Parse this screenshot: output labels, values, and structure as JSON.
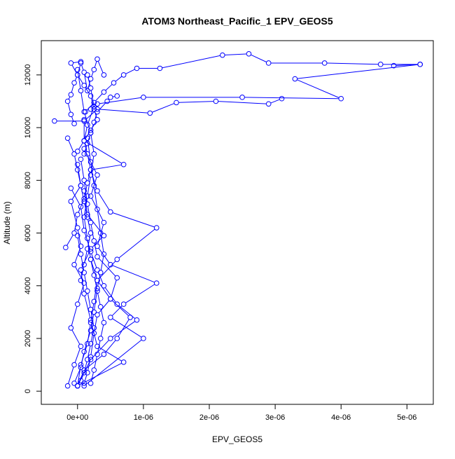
{
  "chart_data": {
    "type": "scatter",
    "title": "ATOM3 Northeast_Pacific_1 EPV_GEOS5",
    "xlabel": "EPV_GEOS5",
    "ylabel": "Altitude (m)",
    "xlim": [
      -5.5e-07,
      5.4e-06
    ],
    "ylim": [
      -500,
      13300
    ],
    "x_ticks": [
      0,
      1e-06,
      2e-06,
      3e-06,
      4e-06,
      5e-06
    ],
    "x_tick_labels": [
      "0e+00",
      "1e-06",
      "2e-06",
      "3e-06",
      "4e-06",
      "5e-06"
    ],
    "y_ticks": [
      0,
      2000,
      4000,
      6000,
      8000,
      10000,
      12000
    ],
    "y_tick_labels": [
      "0",
      "2000",
      "4000",
      "6000",
      "8000",
      "10000",
      "12000"
    ],
    "grid": false,
    "colors": {
      "series": "#0000ff",
      "axes": "#000000",
      "background": "#ffffff"
    },
    "series": [
      {
        "x": [
          1.2e-07,
          2.5e-07,
          4e-07,
          5.5e-07,
          7e-07,
          9e-07,
          1.25e-06,
          2.2e-06,
          2.6e-06,
          2.9e-06,
          3.75e-06,
          4.6e-06,
          5.2e-06
        ],
        "y": [
          10600,
          10950,
          11350,
          11700,
          12000,
          12250,
          12250,
          12750,
          12800,
          12450,
          12450,
          12400,
          12400
        ]
      },
      {
        "x": [
          2e-07,
          3e-07,
          1e-06,
          2.5e-06,
          4e-06,
          3.3e-06,
          5.2e-06,
          4.8e-06
        ],
        "y": [
          10700,
          10900,
          11150,
          11150,
          11100,
          11850,
          12400,
          12350
        ]
      },
      {
        "x": [
          -3.5e-07,
          1e-07,
          3e-07,
          1.1e-06,
          1.5e-06,
          2.1e-06,
          2.9e-06,
          3.1e-06
        ],
        "y": [
          10250,
          10250,
          10700,
          10550,
          10950,
          11000,
          10900,
          11100
        ]
      },
      {
        "x": [
          0,
          5e-08,
          1.5e-07,
          2e-07,
          2.5e-07,
          3e-07,
          2e-07,
          1.5e-07,
          1e-07,
          1.5e-07,
          2e-07,
          2.5e-07,
          2e-07,
          1e-07,
          5e-08,
          0
        ],
        "y": [
          200,
          1000,
          1800,
          2600,
          3400,
          4200,
          5000,
          5800,
          6600,
          7400,
          8200,
          9000,
          9800,
          10600,
          11400,
          12200
        ]
      },
      {
        "x": [
          0,
          1e-07,
          4e-07,
          6e-07,
          8e-07,
          5e-07,
          3e-07,
          6e-07,
          1.2e-06,
          5e-07,
          3e-07,
          2e-07,
          7e-07,
          1e-07,
          1e-07
        ],
        "y": [
          200,
          800,
          1400,
          2000,
          2800,
          3500,
          4200,
          5000,
          6200,
          6800,
          7600,
          8400,
          8600,
          9500,
          10300
        ]
      },
      {
        "x": [
          1e-07,
          1e-06,
          5e-07,
          7e-07,
          1.2e-06,
          5e-07,
          3e-07,
          4e-07,
          2e-07,
          3e-07,
          1e-07
        ],
        "y": [
          200,
          2000,
          2800,
          3300,
          4100,
          4800,
          5500,
          6400,
          7400,
          8200,
          9200
        ]
      },
      {
        "x": [
          -1.5e-07,
          -5e-08,
          5e-08,
          -1e-07,
          0,
          1e-07,
          -5e-08,
          5e-08,
          0,
          -1e-07,
          5e-08,
          0
        ],
        "y": [
          200,
          1000,
          1700,
          2400,
          3300,
          4100,
          4800,
          5500,
          6200,
          7200,
          7800,
          8600
        ]
      },
      {
        "x": [
          -1.8e-07,
          -5e-08,
          0,
          1e-07,
          1.5e-07,
          2e-07,
          1.5e-07,
          1e-07,
          1.5e-07,
          2.5e-07,
          2e-07,
          1.5e-07
        ],
        "y": [
          5450,
          6000,
          6700,
          7300,
          7900,
          8400,
          9000,
          9500,
          10100,
          10800,
          11500,
          12000
        ]
      },
      {
        "x": [
          0,
          2e-07,
          5e-07,
          9e-07,
          6e-07,
          4e-07,
          3e-07,
          2e-07,
          1e-07,
          5e-08,
          -1e-07
        ],
        "y": [
          200,
          1200,
          2000,
          2700,
          3300,
          4000,
          4600,
          5300,
          6100,
          7000,
          7700
        ]
      },
      {
        "x": [
          0,
          7e-07,
          3e-07,
          2e-07,
          1e-07,
          5e-08,
          2e-07,
          4e-07,
          1.5e-07,
          1e-07
        ],
        "y": [
          200,
          1100,
          1700,
          2700,
          3700,
          4600,
          5400,
          5900,
          6700,
          7600
        ]
      },
      {
        "x": [
          -5e-08,
          5e-08,
          1e-07,
          2e-07,
          2.5e-07,
          3e-07,
          3.5e-07,
          4e-07,
          3.5e-07,
          3e-07,
          2.5e-07,
          2e-07,
          1.5e-07
        ],
        "y": [
          300,
          900,
          1500,
          2300,
          3000,
          3900,
          4500,
          5200,
          6000,
          6900,
          7800,
          8700,
          9600
        ]
      },
      {
        "x": [
          1e-07,
          1.5e-07,
          2e-07,
          2.5e-07,
          3e-07,
          5e-07,
          6e-07,
          3e-07,
          2.5e-07,
          2e-07,
          1.5e-07,
          1e-07,
          5e-08
        ],
        "y": [
          300,
          700,
          1300,
          2200,
          2900,
          3500,
          4300,
          5100,
          5700,
          6400,
          7100,
          8000,
          8800
        ]
      },
      {
        "x": [
          -5e-08,
          -1e-07,
          -1.5e-07,
          -1e-07,
          -5e-08,
          0,
          5e-08,
          1e-07,
          1.5e-07,
          2e-07,
          2.5e-07,
          3e-07,
          4e-07
        ],
        "y": [
          10150,
          10500,
          11000,
          11250,
          11700,
          12000,
          12450,
          12100,
          11400,
          11850,
          12200,
          12600,
          12000
        ]
      },
      {
        "x": [
          1e-07,
          1.5e-07,
          2e-07,
          2.5e-07,
          3e-07,
          4.5e-07,
          5e-07,
          6e-07
        ],
        "y": [
          9000,
          9400,
          9800,
          10200,
          10600,
          11000,
          11150,
          11200
        ]
      },
      {
        "x": [
          0,
          5e-08,
          1e-07,
          1.5e-07,
          2e-07,
          2.5e-07,
          2e-07,
          1.5e-07,
          1e-07,
          5e-08,
          0
        ],
        "y": [
          200,
          400,
          700,
          1200,
          1800,
          2400,
          3100,
          3800,
          4500,
          5200,
          5900
        ]
      },
      {
        "x": [
          -1.5e-07,
          -5e-08,
          0,
          5e-08,
          1e-07,
          1.5e-07,
          2e-07,
          1.5e-07,
          1e-07,
          5e-08
        ],
        "y": [
          9600,
          9000,
          8400,
          7800,
          7200,
          6600,
          6000,
          5400,
          4800,
          4200
        ]
      },
      {
        "x": [
          2e-07,
          2.5e-07,
          3e-07,
          3.5e-07,
          4e-07,
          3.5e-07,
          3e-07,
          2.5e-07,
          2e-07
        ],
        "y": [
          5000,
          4400,
          3800,
          3200,
          2600,
          2000,
          1400,
          800,
          300
        ]
      },
      {
        "x": [
          5e-08,
          -1e-07,
          0,
          1e-07,
          2e-07,
          2.5e-07,
          3e-07,
          2e-07,
          1e-07,
          0
        ],
        "y": [
          12500,
          12450,
          12000,
          11600,
          11200,
          10700,
          10300,
          9900,
          9500,
          9100
        ]
      }
    ]
  }
}
